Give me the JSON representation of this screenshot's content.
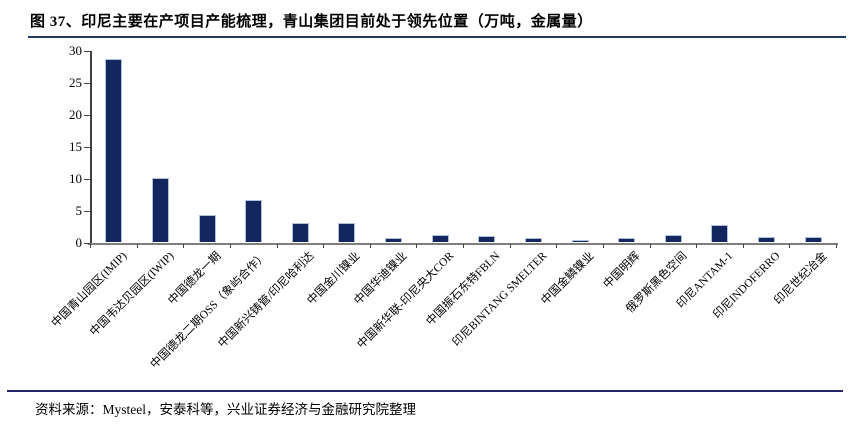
{
  "figure": {
    "title": "图 37、印尼主要在产项目产能梳理，青山集团目前处于领先位置（万吨，金属量）",
    "source": "资料来源：Mysteel，安泰科等，兴业证券经济与金融研究院整理"
  },
  "colors": {
    "bar_fill": "#14265E",
    "bar_border": "#B3C0DA",
    "title_rule": "#1F3864",
    "source_rule": "#26266B",
    "x_axis": "#7F7F7F",
    "y_axis": "#404040",
    "tick": "#404040",
    "text": "#000000"
  },
  "chart_data": {
    "type": "bar",
    "title": "印尼主要在产项目产能梳理，青山集团目前处于领先位置（万吨，金属量）",
    "xlabel": "",
    "ylabel": "",
    "ylim": [
      0,
      30
    ],
    "yticks": [
      0,
      5,
      10,
      15,
      20,
      25,
      30
    ],
    "grid": false,
    "legend_position": "none",
    "categories": [
      "中国青山园区(IMIP)",
      "中国韦达贝园区(IWIP)",
      "中国德龙一期",
      "中国德龙二期OSS（象屿合作）",
      "中国新兴铸管/印尼哈利达",
      "中国金川镍业",
      "中国华迪镍业",
      "中国新华联-印尼央大COR",
      "中国振石东特FBLN",
      "印尼BINTANG SMELTER",
      "中国金鳞镍业",
      "中国明辉",
      "俄罗斯黑色空间",
      "印尼ANTAM-1",
      "印尼INDOFERRO",
      "印尼世纪冶金"
    ],
    "values": [
      28.5,
      9.9,
      4.0,
      6.4,
      2.8,
      2.8,
      0.5,
      1.0,
      0.8,
      0.4,
      0.15,
      0.5,
      1.0,
      2.5,
      0.65,
      0.65
    ]
  }
}
